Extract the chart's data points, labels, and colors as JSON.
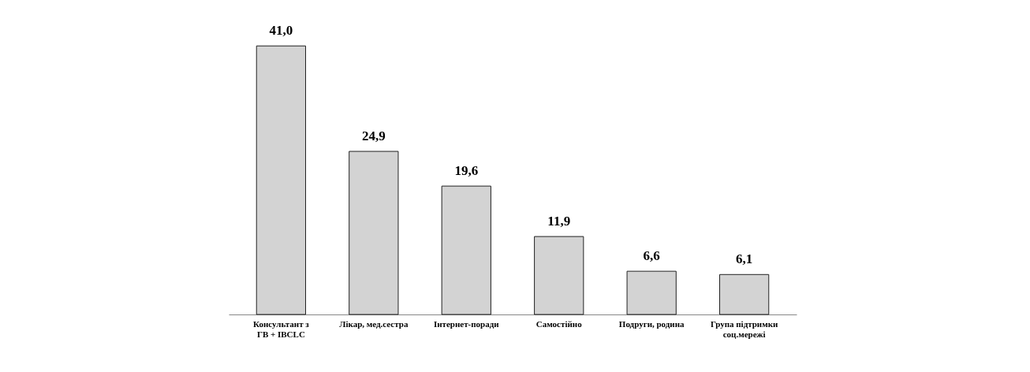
{
  "chart_data": {
    "type": "bar",
    "categories": [
      "Консультант з\nГВ + IBCLC",
      "Лікар, мед.сестра",
      "Інтернет-поради",
      "Самостійно",
      "Подруги, родина",
      "Група підтримки\nсоц.мережі"
    ],
    "values": [
      41.0,
      24.9,
      19.6,
      11.9,
      6.6,
      6.1
    ],
    "value_labels": [
      "41,0",
      "24,9",
      "19,6",
      "11,9",
      "6,6",
      "6,1"
    ],
    "color": "#d3d3d3"
  }
}
